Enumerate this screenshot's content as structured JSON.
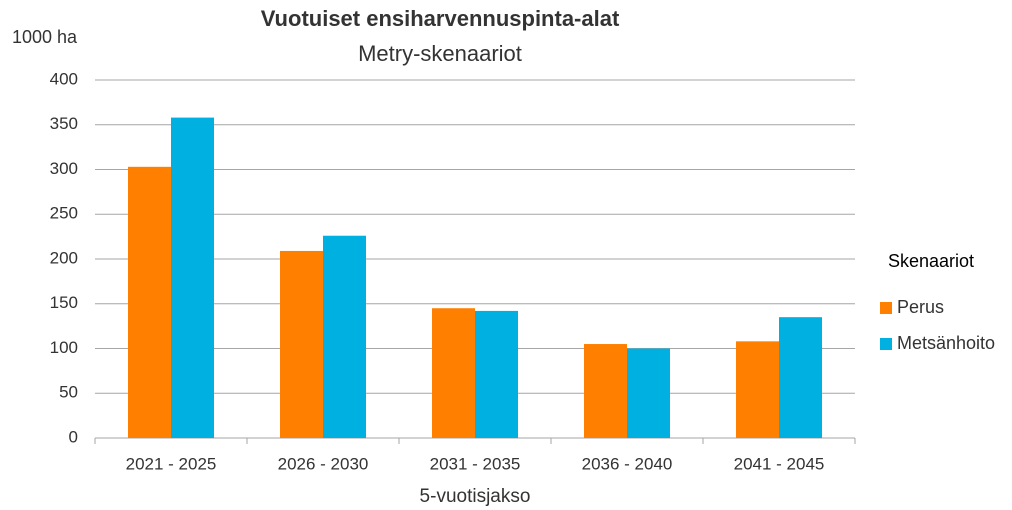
{
  "chart_data": {
    "type": "bar",
    "title": "Vuotuiset ensiharvennuspinta-alat",
    "subtitle": "Metry-skenaariot",
    "y_label": "1000 ha",
    "x_label": "5-vuotisjakso",
    "legend_title": "Skenaariot",
    "categories": [
      "2021 - 2025",
      "2026 - 2030",
      "2031 - 2035",
      "2036 - 2040",
      "2041 - 2045"
    ],
    "series": [
      {
        "name": "Perus",
        "color": "#ff8000",
        "values": [
          303,
          209,
          145,
          105,
          108
        ]
      },
      {
        "name": "Metsänhoito",
        "color": "#00b0e0",
        "values": [
          358,
          226,
          142,
          100,
          135
        ]
      }
    ],
    "ylim": [
      0,
      400
    ],
    "yticks": [
      0,
      50,
      100,
      150,
      200,
      250,
      300,
      350,
      400
    ],
    "grid": true,
    "legend": "right"
  }
}
